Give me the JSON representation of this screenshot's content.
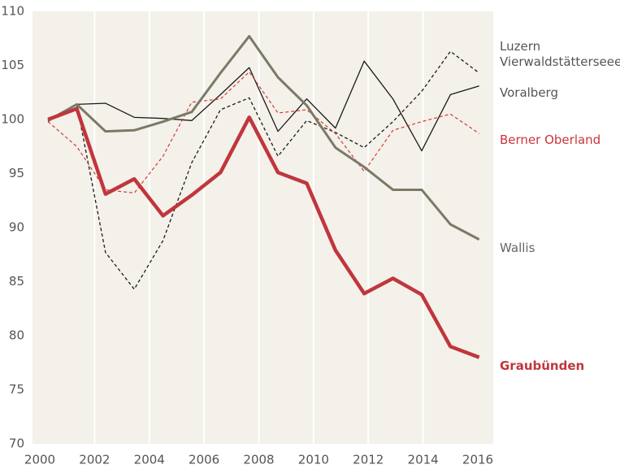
{
  "chart_data": {
    "type": "line",
    "x": [
      2000.3,
      2001.35,
      2002.4,
      2003.45,
      2004.5,
      2005.55,
      2006.6,
      2007.65,
      2008.7,
      2009.75,
      2010.8,
      2011.85,
      2012.9,
      2013.95,
      2015.0,
      2016.05
    ],
    "series": [
      {
        "name": "Luzern Vierwaldstätterseee",
        "color": "#1a1a1a",
        "label_color": "#555555",
        "linestyle": "dashed",
        "values": [
          99.8,
          101.4,
          87.7,
          84.3,
          88.8,
          96.0,
          100.9,
          102.0,
          96.6,
          99.9,
          98.8,
          97.4,
          99.8,
          102.6,
          106.3,
          104.3
        ]
      },
      {
        "name": "Voralberg",
        "color": "#1a1a1a",
        "label_color": "#555555",
        "linestyle": "solid",
        "values": [
          99.9,
          101.4,
          101.5,
          100.2,
          100.1,
          99.9,
          102.3,
          104.8,
          98.9,
          101.9,
          99.2,
          105.4,
          101.9,
          97.1,
          102.3,
          103.1
        ]
      },
      {
        "name": "Berner Oberland",
        "color": "#d9383a",
        "label_color": "#c8363b",
        "linestyle": "dashed",
        "values": [
          99.8,
          97.5,
          93.5,
          93.2,
          96.6,
          101.6,
          101.9,
          104.4,
          100.6,
          100.9,
          98.7,
          95.2,
          99.0,
          99.8,
          100.5,
          98.7
        ]
      },
      {
        "name": "Wallis",
        "color": "#7a7a66",
        "label_color": "#666666",
        "linestyle": "solid",
        "values": [
          99.9,
          101.4,
          98.9,
          99.0,
          99.8,
          100.7,
          104.3,
          107.7,
          103.9,
          101.3,
          97.4,
          95.6,
          93.5,
          93.5,
          90.3,
          88.9
        ]
      },
      {
        "name": "Graubünden",
        "color": "#c0363c",
        "label_color": "#c0363c",
        "linestyle": "solid",
        "bold": true,
        "values": [
          100.0,
          101.0,
          93.1,
          94.5,
          91.1,
          93.0,
          95.1,
          100.2,
          95.1,
          94.1,
          87.9,
          83.9,
          85.3,
          83.8,
          79.0,
          78.0
        ]
      }
    ],
    "xlim": [
      2000,
      2016
    ],
    "xticks": [
      2000,
      2002,
      2004,
      2006,
      2008,
      2010,
      2012,
      2014,
      2016
    ],
    "ylim": [
      70,
      110
    ],
    "yticks": [
      70,
      75,
      80,
      85,
      90,
      95,
      100,
      105,
      110
    ],
    "grid": true,
    "background": "#f3f1ea"
  }
}
